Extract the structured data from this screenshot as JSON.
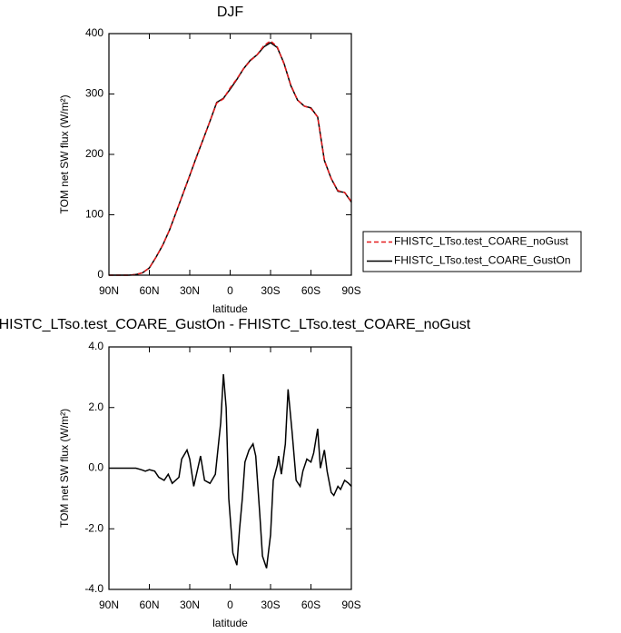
{
  "chart_data": [
    {
      "type": "line",
      "title": "DJF",
      "x_label": "latitude",
      "y_label": "TOM net SW flux (W/m²)",
      "x": [
        90,
        85,
        80,
        75,
        70,
        65,
        60,
        55,
        50,
        45,
        40,
        35,
        30,
        25,
        20,
        15,
        10,
        5,
        0,
        -5,
        -10,
        -15,
        -20,
        -25,
        -30,
        -35,
        -40,
        -45,
        -50,
        -55,
        -60,
        -65,
        -70,
        -75,
        -80,
        -85,
        -90
      ],
      "series": [
        {
          "name": "FHISTC_LTso.test_COARE_noGust",
          "color": "#e41a1c",
          "dashed": true,
          "values": [
            0,
            0,
            0,
            0,
            1,
            4,
            12,
            30,
            50,
            75,
            105,
            135,
            165,
            195,
            225,
            255,
            285,
            292,
            310,
            325,
            342,
            355,
            365,
            380,
            388,
            378,
            350,
            315,
            290,
            280,
            276,
            262,
            190,
            160,
            140,
            137,
            122
          ]
        },
        {
          "name": "FHISTC_LTso.test_COARE_GustOn",
          "color": "#000000",
          "dashed": false,
          "values": [
            0,
            0,
            0,
            0,
            1,
            4,
            12,
            30,
            50,
            75,
            105,
            135,
            165,
            196,
            225,
            255,
            286,
            293,
            308,
            324,
            342,
            356,
            365,
            378,
            385,
            377,
            351,
            314,
            290,
            280,
            277,
            262,
            190,
            160,
            139,
            137,
            121
          ]
        }
      ],
      "xlim": [
        90,
        -90
      ],
      "xticks": [
        {
          "value": 90,
          "label": "90N"
        },
        {
          "value": 60,
          "label": "60N"
        },
        {
          "value": 30,
          "label": "30N"
        },
        0,
        {
          "value": -30,
          "label": "30S"
        },
        {
          "value": -60,
          "label": "60S"
        },
        {
          "value": -90,
          "label": "90S"
        }
      ],
      "ylim": [
        0,
        400
      ],
      "yticks": [
        0,
        100,
        200,
        300,
        400
      ],
      "legend": "outside-right",
      "grid": false
    },
    {
      "type": "line",
      "title": "FHISTC_LTso.test_COARE_GustOn - FHISTC_LTso.test_COARE_noGust",
      "x_label": "latitude",
      "y_label": "TOM net SW flux (W/m²)",
      "x": [
        90,
        80,
        70,
        66,
        63,
        60,
        56,
        53,
        49,
        46,
        43,
        38,
        36,
        32,
        30,
        27,
        24,
        22,
        19,
        15,
        11,
        7,
        5,
        3,
        1,
        -2,
        -5,
        -7,
        -9,
        -11,
        -14,
        -17,
        -19,
        -22,
        -24,
        -27,
        -30,
        -32,
        -35,
        -36,
        -38,
        -41,
        -43,
        -46,
        -49,
        -52,
        -54,
        -57,
        -60,
        -62,
        -65,
        -67,
        -70,
        -72,
        -75,
        -77,
        -80,
        -82,
        -85,
        -88,
        -90
      ],
      "values": [
        0,
        0,
        0,
        -0.05,
        -0.1,
        -0.05,
        -0.1,
        -0.3,
        -0.4,
        -0.2,
        -0.5,
        -0.3,
        0.3,
        0.6,
        0.3,
        -0.6,
        0.0,
        0.4,
        -0.4,
        -0.5,
        -0.2,
        1.5,
        3.1,
        2.0,
        -1.0,
        -2.8,
        -3.2,
        -2.0,
        -1.0,
        0.2,
        0.6,
        0.8,
        0.4,
        -1.5,
        -2.9,
        -3.3,
        -2.2,
        -0.4,
        0.1,
        0.4,
        -0.2,
        0.8,
        2.6,
        1.2,
        -0.4,
        -0.6,
        -0.1,
        0.3,
        0.2,
        0.5,
        1.3,
        0.0,
        0.6,
        -0.1,
        -0.8,
        -0.9,
        -0.6,
        -0.7,
        -0.4,
        -0.5,
        -0.6
      ],
      "color": "#000000",
      "xlim": [
        90,
        -90
      ],
      "xticks": [
        {
          "value": 90,
          "label": "90N"
        },
        {
          "value": 60,
          "label": "60N"
        },
        {
          "value": 30,
          "label": "30N"
        },
        0,
        {
          "value": -30,
          "label": "30S"
        },
        {
          "value": -60,
          "label": "60S"
        },
        {
          "value": -90,
          "label": "90S"
        }
      ],
      "ylim": [
        -4,
        4
      ],
      "yticks": [
        {
          "value": 4,
          "label": "4.0"
        },
        {
          "value": 2,
          "label": "2.0"
        },
        {
          "value": 0,
          "label": "0.0"
        },
        {
          "value": -2,
          "label": "-2.0"
        },
        {
          "value": -4,
          "label": "-4.0"
        }
      ],
      "grid": false
    }
  ]
}
